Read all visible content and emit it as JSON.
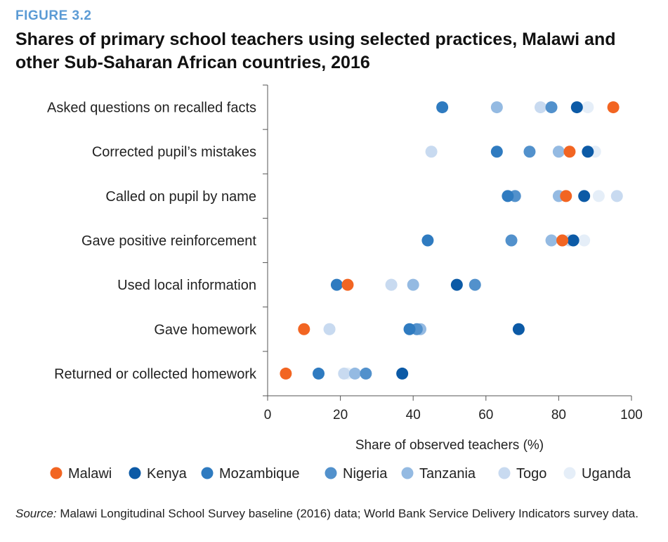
{
  "figure_label": "FIGURE 3.2",
  "title": "Shares of primary school teachers using selected practices, Malawi and other Sub-Saharan African countries, 2016",
  "source": {
    "prefix": "Source:",
    "text": " Malawi Longitudinal School Survey baseline (2016) data; World Bank Service Delivery Indicators survey data."
  },
  "chart_data": {
    "type": "scatter",
    "orientation": "horizontal-dot-plot",
    "title": "Shares of primary school teachers using selected practices, Malawi and other Sub-Saharan African countries, 2016",
    "xlabel": "Share of observed teachers (%)",
    "ylabel": "",
    "xlim": [
      0,
      100
    ],
    "xticks": [
      0,
      20,
      40,
      60,
      80,
      100
    ],
    "grid": false,
    "legend_position": "bottom",
    "categories": [
      "Asked questions on recalled facts",
      "Corrected pupil’s mistakes",
      "Called on pupil by name",
      "Gave positive reinforcement",
      "Used local information",
      "Gave homework",
      "Returned or collected homework"
    ],
    "series": [
      {
        "name": "Malawi",
        "color": "#f26522",
        "values": [
          95,
          83,
          82,
          81,
          22,
          10,
          5
        ]
      },
      {
        "name": "Kenya",
        "color": "#0c5aa6",
        "values": [
          85,
          88,
          87,
          84,
          52,
          69,
          37
        ]
      },
      {
        "name": "Mozambique",
        "color": "#2f7bc0",
        "values": [
          48,
          63,
          66,
          44,
          19,
          39,
          14
        ]
      },
      {
        "name": "Nigeria",
        "color": "#5291cc",
        "values": [
          78,
          72,
          68,
          67,
          57,
          41,
          27
        ]
      },
      {
        "name": "Tanzania",
        "color": "#94bae2",
        "values": [
          63,
          80,
          80,
          78,
          40,
          42,
          24
        ]
      },
      {
        "name": "Togo",
        "color": "#c8daf0",
        "values": [
          75,
          45,
          96,
          83,
          34,
          17,
          21
        ]
      },
      {
        "name": "Uganda",
        "color": "#e5eef8",
        "values": [
          88,
          90,
          91,
          87,
          34,
          17,
          22
        ]
      }
    ]
  }
}
